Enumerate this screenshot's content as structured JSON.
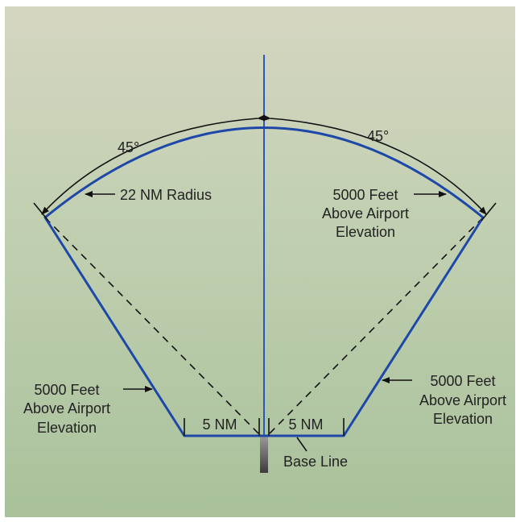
{
  "colors": {
    "boundary": "#1e48a8",
    "axis": "#2a57b8",
    "arrows": "#111111",
    "background_top": "#d5d6c1",
    "background_bottom": "#a9c19b",
    "post": "#555555"
  },
  "labels": {
    "angle_left": "45°",
    "angle_right": "45°",
    "radius": "22 NM Radius",
    "elev_top_right": [
      "5000 Feet",
      "Above Airport",
      "Elevation"
    ],
    "elev_left": [
      "5000 Feet",
      "Above Airport",
      "Elevation"
    ],
    "elev_right": [
      "5000 Feet",
      "Above Airport",
      "Elevation"
    ],
    "nm_left": "5 NM",
    "nm_right": "5 NM",
    "base_line": "Base Line"
  }
}
